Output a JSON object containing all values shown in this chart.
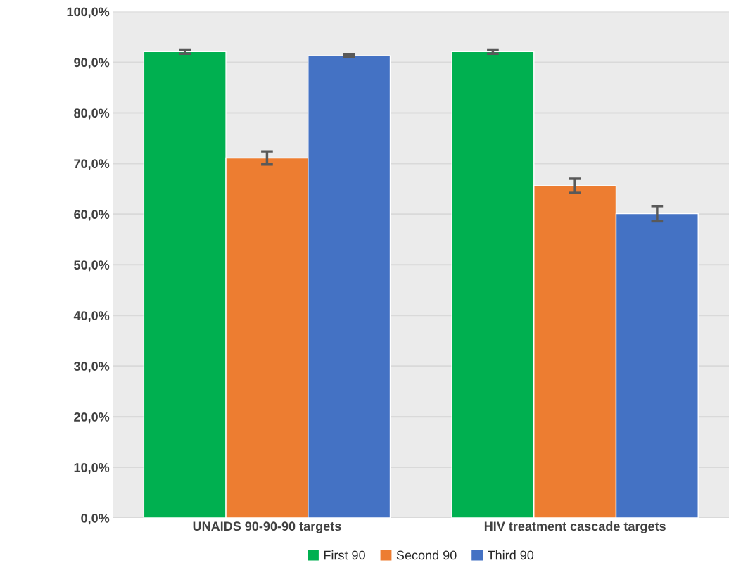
{
  "chart_data": {
    "type": "bar",
    "categories": [
      "UNAIDS 90-90-90 targets",
      "HIV treatment cascade targets"
    ],
    "series": [
      {
        "name": "First 90",
        "color": "#00b050",
        "values": [
          92.1,
          92.1
        ],
        "errors": [
          0.4,
          0.4
        ]
      },
      {
        "name": "Second 90",
        "color": "#ed7d31",
        "values": [
          71.1,
          65.6
        ],
        "errors": [
          1.3,
          1.4
        ]
      },
      {
        "name": "Third 90",
        "color": "#4472c4",
        "values": [
          91.3,
          60.1
        ],
        "errors": [
          0.2,
          1.5
        ]
      }
    ],
    "ylim": [
      0,
      100
    ],
    "yticks": [
      {
        "value": 0,
        "label": "0,0%"
      },
      {
        "value": 10,
        "label": "10,0%"
      },
      {
        "value": 20,
        "label": "20,0%"
      },
      {
        "value": 30,
        "label": "30,0%"
      },
      {
        "value": 40,
        "label": "40,0%"
      },
      {
        "value": 50,
        "label": "50,0%"
      },
      {
        "value": 60,
        "label": "60,0%"
      },
      {
        "value": 70,
        "label": "70,0%"
      },
      {
        "value": 80,
        "label": "80,0%"
      },
      {
        "value": 90,
        "label": "90,0%"
      },
      {
        "value": 100,
        "label": "100,0%"
      }
    ],
    "grid": "y",
    "legend": "bottom"
  }
}
